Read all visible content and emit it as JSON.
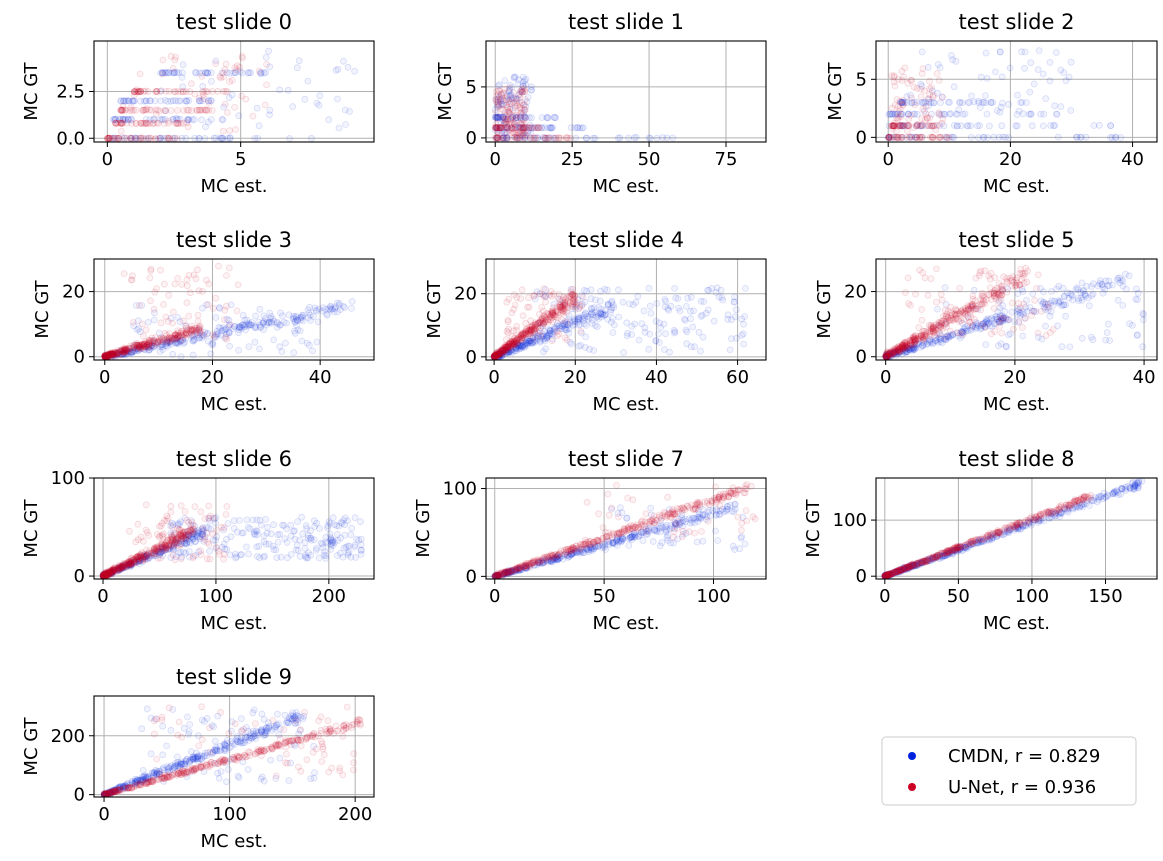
{
  "chart_data": [
    {
      "type": "scatter",
      "title": "test slide 0",
      "xlabel": "MC est.",
      "ylabel": "MC GT",
      "xlim": [
        -0.5,
        10
      ],
      "ylim": [
        -0.2,
        5.2
      ],
      "xticks": [
        {
          "v": 0,
          "label": "0"
        },
        {
          "v": 5,
          "label": "5"
        }
      ],
      "yticks": [
        {
          "v": 0,
          "label": "0.0"
        },
        {
          "v": 2.5,
          "label": "2.5"
        }
      ],
      "grid": true,
      "series": [
        {
          "name": "CMDN",
          "color": "#0022dd",
          "bands": [
            {
              "x0": 0,
              "x1": 8,
              "y": 0
            },
            {
              "x0": 0.2,
              "x1": 4.5,
              "y": 1
            },
            {
              "x0": 0.5,
              "x1": 4,
              "y": 2
            },
            {
              "x0": 2,
              "x1": 6,
              "y": 3.5
            }
          ],
          "cloud": [
            {
              "x0": 2,
              "x1": 9.5,
              "y0": 0.5,
              "y1": 4.8,
              "n": 45
            }
          ]
        },
        {
          "name": "U-Net",
          "color": "#cc0022",
          "bands": [
            {
              "x0": 0,
              "x1": 3,
              "y": 0
            },
            {
              "x0": 0.3,
              "x1": 3,
              "y": 0.8
            },
            {
              "x0": 0.5,
              "x1": 4,
              "y": 1.5
            },
            {
              "x0": 1,
              "x1": 4.5,
              "y": 2.5
            }
          ],
          "cloud": [
            {
              "x0": 0.5,
              "x1": 6,
              "y0": 0.3,
              "y1": 4.8,
              "n": 55
            }
          ]
        }
      ]
    },
    {
      "type": "scatter",
      "title": "test slide 1",
      "xlabel": "MC est.",
      "ylabel": "MC GT",
      "xlim": [
        -3,
        88
      ],
      "ylim": [
        -0.4,
        9.5
      ],
      "xticks": [
        {
          "v": 0,
          "label": "0"
        },
        {
          "v": 25,
          "label": "25"
        },
        {
          "v": 50,
          "label": "50"
        },
        {
          "v": 75,
          "label": "75"
        }
      ],
      "yticks": [
        {
          "v": 0,
          "label": "0"
        },
        {
          "v": 5,
          "label": "5"
        }
      ],
      "grid": true,
      "series": [
        {
          "name": "CMDN",
          "color": "#0022dd",
          "bands": [
            {
              "x0": 0,
              "x1": 62,
              "y": 0
            },
            {
              "x0": 0,
              "x1": 30,
              "y": 1
            },
            {
              "x0": 0,
              "x1": 20,
              "y": 2
            }
          ],
          "cloud": [
            {
              "x0": 0,
              "x1": 12,
              "y0": 0,
              "y1": 6,
              "n": 90
            }
          ]
        },
        {
          "name": "U-Net",
          "color": "#cc0022",
          "bands": [
            {
              "x0": 0,
              "x1": 25,
              "y": 0
            },
            {
              "x0": 0,
              "x1": 15,
              "y": 1
            }
          ],
          "cloud": [
            {
              "x0": 0,
              "x1": 10,
              "y0": 0,
              "y1": 5,
              "n": 120
            }
          ]
        }
      ]
    },
    {
      "type": "scatter",
      "title": "test slide 2",
      "xlabel": "MC est.",
      "ylabel": "MC GT",
      "xlim": [
        -2,
        44
      ],
      "ylim": [
        -0.4,
        8.3
      ],
      "xticks": [
        {
          "v": 0,
          "label": "0"
        },
        {
          "v": 20,
          "label": "20"
        },
        {
          "v": 40,
          "label": "40"
        }
      ],
      "yticks": [
        {
          "v": 0,
          "label": "0"
        },
        {
          "v": 5,
          "label": "5"
        }
      ],
      "grid": true,
      "series": [
        {
          "name": "CMDN",
          "color": "#0022dd",
          "bands": [
            {
              "x0": 0,
              "x1": 40,
              "y": 0
            },
            {
              "x0": 0,
              "x1": 38,
              "y": 1
            },
            {
              "x0": 0,
              "x1": 30,
              "y": 2
            },
            {
              "x0": 2,
              "x1": 24,
              "y": 3
            }
          ],
          "cloud": [
            {
              "x0": 3,
              "x1": 30,
              "y0": 2,
              "y1": 7.5,
              "n": 60
            }
          ]
        },
        {
          "name": "U-Net",
          "color": "#cc0022",
          "bands": [
            {
              "x0": 0,
              "x1": 10,
              "y": 0
            },
            {
              "x0": 0.5,
              "x1": 8,
              "y": 1
            }
          ],
          "cloud": [
            {
              "x0": 0.5,
              "x1": 9,
              "y0": 0.5,
              "y1": 6,
              "n": 70
            }
          ]
        }
      ]
    },
    {
      "type": "scatter",
      "title": "test slide 3",
      "xlabel": "MC est.",
      "ylabel": "MC GT",
      "xlim": [
        -2,
        50
      ],
      "ylim": [
        -1,
        30
      ],
      "xticks": [
        {
          "v": 0,
          "label": "0"
        },
        {
          "v": 20,
          "label": "20"
        },
        {
          "v": 40,
          "label": "40"
        }
      ],
      "yticks": [
        {
          "v": 0,
          "label": "0"
        },
        {
          "v": 20,
          "label": "20"
        }
      ],
      "grid": true,
      "series": [
        {
          "name": "CMDN",
          "color": "#0022dd",
          "lines": [
            {
              "a": 0.35,
              "s": 2.5,
              "xmax": 46,
              "n": 260
            }
          ],
          "cloud": [
            {
              "x0": 5,
              "x1": 40,
              "y0": 0,
              "y1": 16,
              "n": 80
            }
          ]
        },
        {
          "name": "U-Net",
          "color": "#cc0022",
          "lines": [
            {
              "a": 0.5,
              "s": 2,
              "xmax": 18,
              "n": 300
            }
          ],
          "cloud": [
            {
              "x0": 3,
              "x1": 25,
              "y0": 5,
              "y1": 28,
              "n": 60
            }
          ]
        }
      ]
    },
    {
      "type": "scatter",
      "title": "test slide 4",
      "xlabel": "MC est.",
      "ylabel": "MC GT",
      "xlim": [
        -2,
        67
      ],
      "ylim": [
        -1,
        31
      ],
      "xticks": [
        {
          "v": 0,
          "label": "0"
        },
        {
          "v": 20,
          "label": "20"
        },
        {
          "v": 40,
          "label": "40"
        },
        {
          "v": 60,
          "label": "60"
        }
      ],
      "yticks": [
        {
          "v": 0,
          "label": "0"
        },
        {
          "v": 20,
          "label": "20"
        }
      ],
      "grid": true,
      "series": [
        {
          "name": "CMDN",
          "color": "#0022dd",
          "lines": [
            {
              "a": 0.55,
              "s": 3,
              "xmax": 30,
              "n": 240
            }
          ],
          "cloud": [
            {
              "x0": 10,
              "x1": 62,
              "y0": 1,
              "y1": 22,
              "n": 160
            }
          ]
        },
        {
          "name": "U-Net",
          "color": "#cc0022",
          "lines": [
            {
              "a": 0.95,
              "s": 2.5,
              "xmax": 20,
              "n": 320
            }
          ],
          "cloud": [
            {
              "x0": 3,
              "x1": 22,
              "y0": 5,
              "y1": 22,
              "n": 80
            }
          ]
        }
      ]
    },
    {
      "type": "scatter",
      "title": "test slide 5",
      "xlabel": "MC est.",
      "ylabel": "MC GT",
      "xlim": [
        -1.5,
        42
      ],
      "ylim": [
        -1,
        30
      ],
      "xticks": [
        {
          "v": 0,
          "label": "0"
        },
        {
          "v": 20,
          "label": "20"
        },
        {
          "v": 40,
          "label": "40"
        }
      ],
      "yticks": [
        {
          "v": 0,
          "label": "0"
        },
        {
          "v": 20,
          "label": "20"
        }
      ],
      "grid": true,
      "series": [
        {
          "name": "CMDN",
          "color": "#0022dd",
          "lines": [
            {
              "a": 0.65,
              "s": 3,
              "xmax": 38,
              "n": 280
            }
          ],
          "cloud": [
            {
              "x0": 8,
              "x1": 40,
              "y0": 3,
              "y1": 22,
              "n": 80
            }
          ]
        },
        {
          "name": "U-Net",
          "color": "#cc0022",
          "lines": [
            {
              "a": 1.15,
              "s": 3.5,
              "xmax": 22,
              "n": 340
            }
          ],
          "cloud": [
            {
              "x0": 3,
              "x1": 26,
              "y0": 6,
              "y1": 27,
              "n": 90
            }
          ]
        }
      ]
    },
    {
      "type": "scatter",
      "title": "test slide 6",
      "xlabel": "MC est.",
      "ylabel": "MC GT",
      "xlim": [
        -8,
        240
      ],
      "ylim": [
        -3,
        100
      ],
      "xticks": [
        {
          "v": 0,
          "label": "0"
        },
        {
          "v": 100,
          "label": "100"
        },
        {
          "v": 200,
          "label": "200"
        }
      ],
      "yticks": [
        {
          "v": 0,
          "label": "0"
        },
        {
          "v": 100,
          "label": "100"
        }
      ],
      "grid": true,
      "series": [
        {
          "name": "CMDN",
          "color": "#0022dd",
          "lines": [
            {
              "a": 0.5,
              "s": 6,
              "xmax": 90,
              "n": 200
            }
          ],
          "cloud": [
            {
              "x0": 60,
              "x1": 230,
              "y0": 18,
              "y1": 60,
              "n": 220
            }
          ]
        },
        {
          "name": "U-Net",
          "color": "#cc0022",
          "lines": [
            {
              "a": 0.58,
              "s": 7,
              "xmax": 80,
              "n": 340
            }
          ],
          "cloud": [
            {
              "x0": 20,
              "x1": 110,
              "y0": 15,
              "y1": 75,
              "n": 90
            }
          ]
        }
      ]
    },
    {
      "type": "scatter",
      "title": "test slide 7",
      "xlabel": "MC est.",
      "ylabel": "MC GT",
      "xlim": [
        -4,
        124
      ],
      "ylim": [
        -3,
        112
      ],
      "xticks": [
        {
          "v": 0,
          "label": "0"
        },
        {
          "v": 50,
          "label": "50"
        },
        {
          "v": 100,
          "label": "100"
        }
      ],
      "yticks": [
        {
          "v": 0,
          "label": "0"
        },
        {
          "v": 100,
          "label": "100"
        }
      ],
      "grid": true,
      "series": [
        {
          "name": "CMDN",
          "color": "#0022dd",
          "lines": [
            {
              "a": 0.72,
              "s": 6,
              "xmax": 110,
              "n": 320
            }
          ],
          "cloud": [
            {
              "x0": 50,
              "x1": 115,
              "y0": 30,
              "y1": 80,
              "n": 50
            }
          ]
        },
        {
          "name": "U-Net",
          "color": "#cc0022",
          "lines": [
            {
              "a": 0.88,
              "s": 6,
              "xmax": 118,
              "n": 360
            }
          ],
          "cloud": [
            {
              "x0": 40,
              "x1": 120,
              "y0": 40,
              "y1": 105,
              "n": 40
            }
          ]
        }
      ]
    },
    {
      "type": "scatter",
      "title": "test slide 8",
      "xlabel": "MC est.",
      "ylabel": "MC GT",
      "xlim": [
        -6,
        185
      ],
      "ylim": [
        -5,
        175
      ],
      "xticks": [
        {
          "v": 0,
          "label": "0"
        },
        {
          "v": 50,
          "label": "50"
        },
        {
          "v": 100,
          "label": "100"
        },
        {
          "v": 150,
          "label": "150"
        }
      ],
      "yticks": [
        {
          "v": 0,
          "label": "0"
        },
        {
          "v": 100,
          "label": "100"
        }
      ],
      "grid": true,
      "series": [
        {
          "name": "CMDN",
          "color": "#0022dd",
          "lines": [
            {
              "a": 0.95,
              "s": 8,
              "xmax": 175,
              "n": 380
            }
          ]
        },
        {
          "name": "U-Net",
          "color": "#cc0022",
          "lines": [
            {
              "a": 1.02,
              "s": 6,
              "xmax": 140,
              "n": 380
            }
          ]
        }
      ]
    },
    {
      "type": "scatter",
      "title": "test slide 9",
      "xlabel": "MC est.",
      "ylabel": "MC GT",
      "xlim": [
        -8,
        215
      ],
      "ylim": [
        -8,
        335
      ],
      "xticks": [
        {
          "v": 0,
          "label": "0"
        },
        {
          "v": 100,
          "label": "100"
        },
        {
          "v": 200,
          "label": "200"
        }
      ],
      "yticks": [
        {
          "v": 0,
          "label": "0"
        },
        {
          "v": 200,
          "label": "200"
        }
      ],
      "grid": true,
      "series": [
        {
          "name": "CMDN",
          "color": "#0022dd",
          "lines": [
            {
              "a": 1.7,
              "s": 22,
              "xmax": 160,
              "n": 300
            }
          ],
          "cloud": [
            {
              "x0": 30,
              "x1": 170,
              "y0": 40,
              "y1": 300,
              "n": 80
            }
          ]
        },
        {
          "name": "U-Net",
          "color": "#cc0022",
          "lines": [
            {
              "a": 1.2,
              "s": 14,
              "xmax": 205,
              "n": 320
            }
          ],
          "cloud": [
            {
              "x0": 40,
              "x1": 200,
              "y0": 60,
              "y1": 300,
              "n": 60
            }
          ]
        }
      ]
    }
  ],
  "legend": {
    "placement": "bottom-right",
    "entries": [
      {
        "label": "CMDN, r = 0.829",
        "color": "#0022dd"
      },
      {
        "label": "U-Net, r = 0.936",
        "color": "#cc0022"
      }
    ]
  }
}
